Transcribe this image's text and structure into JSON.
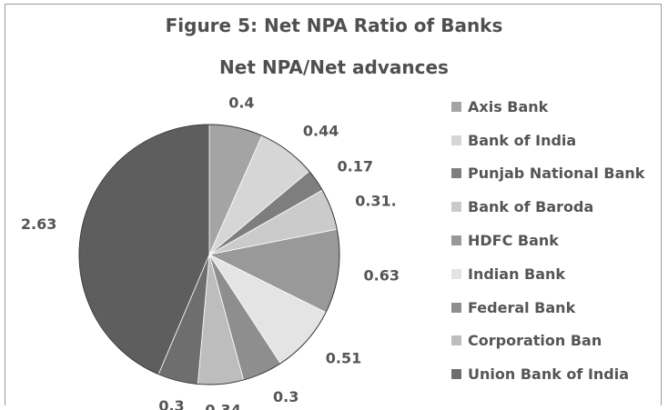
{
  "chart_data": {
    "type": "pie",
    "title": "Figure 5: Net NPA Ratio of Banks",
    "subtitle": "Net NPA/Net advances",
    "legend_position": "right",
    "series": [
      {
        "name": "Axis Bank",
        "value": 0.4,
        "label": "0.4",
        "color": "#a4a4a4"
      },
      {
        "name": "Bank of India",
        "value": 0.44,
        "label": "0.44",
        "color": "#d6d6d6"
      },
      {
        "name": "Punjab National Bank",
        "value": 0.17,
        "label": "0.17",
        "color": "#7e7e7e"
      },
      {
        "name": "Bank of Baroda",
        "value": 0.31,
        "label": "0.31.",
        "color": "#cbcbcb"
      },
      {
        "name": "HDFC Bank",
        "value": 0.63,
        "label": "0.63",
        "color": "#999999"
      },
      {
        "name": "Indian Bank",
        "value": 0.51,
        "label": "0.51",
        "color": "#e4e4e4"
      },
      {
        "name": "Federal Bank",
        "value": 0.3,
        "label": "0.3",
        "color": "#8e8e8e"
      },
      {
        "name": "Corporation Ban",
        "value": 0.34,
        "label": "0.34",
        "color": "#bdbdbd"
      },
      {
        "name": "Union Bank of India",
        "value": 0.3,
        "label": "0.3",
        "color": "#6e6e6e"
      },
      {
        "name": "",
        "value": 2.63,
        "label": "2.63",
        "color": "#5e5e5e"
      }
    ]
  }
}
